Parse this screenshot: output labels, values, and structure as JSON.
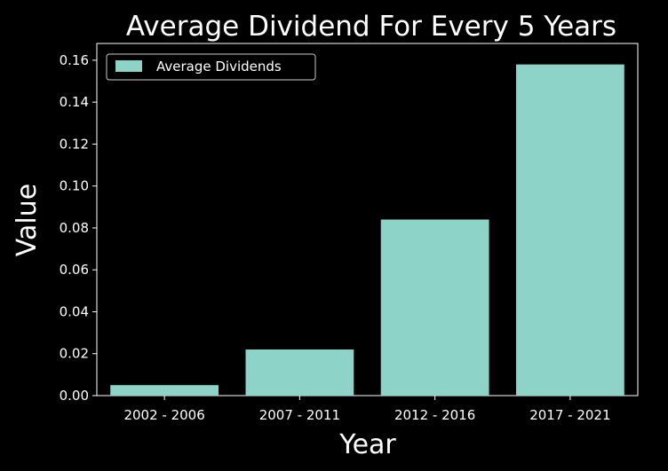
{
  "chart_data": {
    "type": "bar",
    "title": "Average Dividend For Every 5 Years",
    "xlabel": "Year",
    "ylabel": "Value",
    "categories": [
      "2002 - 2006",
      "2007 - 2011",
      "2012 - 2016",
      "2017 - 2021"
    ],
    "series": [
      {
        "name": "Average Dividends",
        "values": [
          0.005,
          0.022,
          0.084,
          0.158
        ]
      }
    ],
    "ylim": [
      0,
      0.168
    ],
    "yticks": [
      "0.00",
      "0.02",
      "0.04",
      "0.06",
      "0.08",
      "0.10",
      "0.12",
      "0.14",
      "0.16"
    ],
    "legend_position": "top-left",
    "grid": false,
    "colors": {
      "background": "#000000",
      "bar": "#8dd3c7",
      "axis": "#ffffff",
      "text": "#ffffff"
    }
  }
}
